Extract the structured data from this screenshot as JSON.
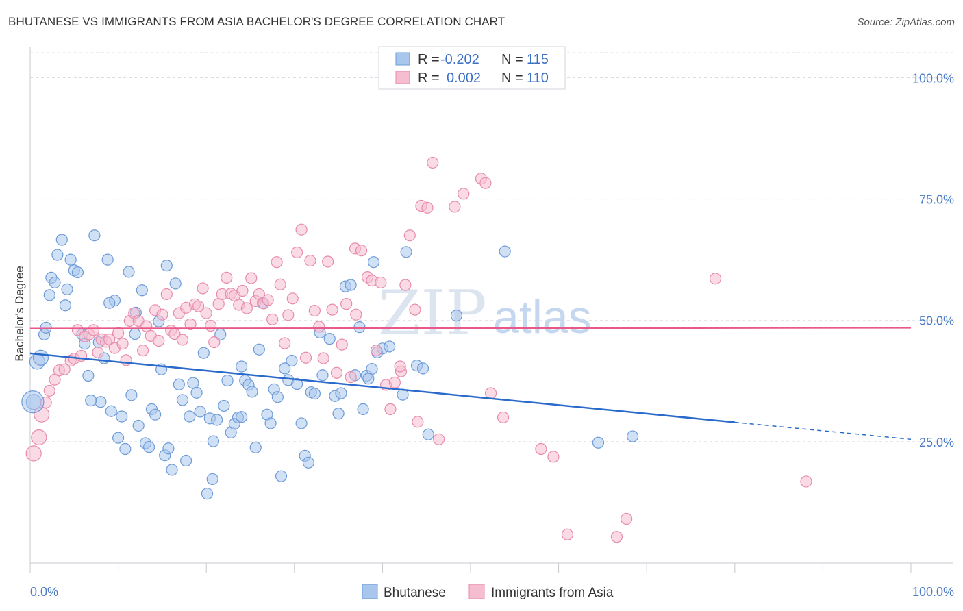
{
  "header": {
    "title": "BHUTANESE VS IMMIGRANTS FROM ASIA BACHELOR'S DEGREE CORRELATION CHART",
    "source": "Source: ZipAtlas.com"
  },
  "watermark": {
    "zip": "ZIP",
    "atlas": "atlas"
  },
  "colors": {
    "blue_fill": "#a9c6ec",
    "blue_stroke": "#6d9bd8",
    "blue_line": "#2a6acb",
    "pink_fill": "#f6bdd0",
    "pink_stroke": "#e88aab",
    "pink_line": "#e8598a",
    "grid": "#d8dde3",
    "tick_text": "#4a7cc7"
  },
  "chart_data": {
    "type": "scatter",
    "title": "BHUTANESE VS IMMIGRANTS FROM ASIA BACHELOR'S DEGREE CORRELATION CHART",
    "xlabel": "",
    "ylabel": "Bachelor's Degree",
    "xlim": [
      0,
      100
    ],
    "ylim": [
      0,
      105
    ],
    "x_tick_labels": [
      "0.0%",
      "100.0%"
    ],
    "y_tick_labels": [
      "25.0%",
      "50.0%",
      "75.0%",
      "100.0%"
    ],
    "y_ticks": [
      25,
      50,
      75,
      100
    ],
    "grid": true,
    "legend": [
      {
        "r_label": "R =",
        "r_value": "-0.202",
        "n_label": "N =",
        "n_value": "115"
      },
      {
        "r_label": "R =",
        "r_value": "0.002",
        "n_label": "N =",
        "n_value": "110"
      }
    ],
    "series": [
      {
        "name": "Bhutanese",
        "color": "blue",
        "trend": {
          "x0": 0,
          "y0": 43.2,
          "x1": 80,
          "y1": 29.0,
          "x_dash_end": 100,
          "y_dash_end": 25.5
        },
        "points": [
          [
            0.4,
            33.2
          ],
          [
            0.8,
            41.5
          ],
          [
            1.2,
            42.3
          ],
          [
            1.6,
            47.1
          ],
          [
            1.8,
            48.5
          ],
          [
            2.2,
            55.2
          ],
          [
            2.4,
            58.8
          ],
          [
            2.8,
            57.8
          ],
          [
            3.1,
            63.5
          ],
          [
            3.6,
            66.6
          ],
          [
            4.0,
            53.1
          ],
          [
            4.2,
            56.4
          ],
          [
            4.6,
            62.5
          ],
          [
            5.0,
            60.3
          ],
          [
            5.4,
            59.9
          ],
          [
            5.9,
            47.1
          ],
          [
            6.2,
            45.2
          ],
          [
            6.6,
            38.6
          ],
          [
            7.3,
            67.5
          ],
          [
            7.8,
            45.5
          ],
          [
            8.0,
            33.2
          ],
          [
            8.4,
            42.2
          ],
          [
            8.8,
            62.5
          ],
          [
            9.2,
            31.3
          ],
          [
            9.6,
            54.1
          ],
          [
            10.0,
            25.8
          ],
          [
            10.4,
            30.2
          ],
          [
            10.8,
            23.5
          ],
          [
            11.2,
            60.0
          ],
          [
            11.5,
            34.6
          ],
          [
            11.9,
            47.2
          ],
          [
            12.3,
            28.3
          ],
          [
            12.7,
            56.2
          ],
          [
            13.1,
            24.7
          ],
          [
            13.5,
            23.9
          ],
          [
            13.8,
            31.7
          ],
          [
            14.2,
            30.6
          ],
          [
            14.6,
            49.8
          ],
          [
            14.9,
            39.9
          ],
          [
            15.3,
            22.2
          ],
          [
            15.7,
            23.6
          ],
          [
            16.1,
            19.2
          ],
          [
            16.5,
            57.6
          ],
          [
            16.9,
            36.8
          ],
          [
            17.3,
            33.6
          ],
          [
            17.7,
            21.1
          ],
          [
            18.1,
            30.2
          ],
          [
            18.5,
            37.1
          ],
          [
            18.9,
            35.1
          ],
          [
            19.3,
            31.2
          ],
          [
            19.7,
            43.3
          ],
          [
            20.1,
            14.3
          ],
          [
            20.4,
            29.8
          ],
          [
            20.8,
            25.1
          ],
          [
            21.2,
            29.5
          ],
          [
            21.6,
            47.1
          ],
          [
            22.0,
            32.4
          ],
          [
            22.4,
            37.6
          ],
          [
            22.8,
            26.9
          ],
          [
            23.2,
            28.7
          ],
          [
            23.6,
            30.0
          ],
          [
            24.0,
            40.5
          ],
          [
            24.4,
            37.6
          ],
          [
            24.8,
            36.7
          ],
          [
            25.2,
            35.3
          ],
          [
            25.6,
            23.8
          ],
          [
            26.0,
            44.0
          ],
          [
            26.4,
            53.6
          ],
          [
            26.9,
            30.6
          ],
          [
            27.3,
            28.8
          ],
          [
            27.7,
            35.8
          ],
          [
            28.1,
            34.2
          ],
          [
            28.5,
            17.9
          ],
          [
            28.9,
            40.1
          ],
          [
            29.3,
            37.7
          ],
          [
            29.7,
            41.7
          ],
          [
            30.3,
            36.9
          ],
          [
            30.8,
            28.8
          ],
          [
            31.2,
            22.1
          ],
          [
            31.6,
            20.7
          ],
          [
            31.9,
            35.2
          ],
          [
            32.3,
            34.9
          ],
          [
            32.9,
            47.5
          ],
          [
            33.2,
            38.7
          ],
          [
            34.0,
            46.2
          ],
          [
            34.6,
            34.4
          ],
          [
            35.0,
            30.8
          ],
          [
            35.3,
            35.0
          ],
          [
            35.8,
            57.0
          ],
          [
            36.4,
            57.3
          ],
          [
            36.9,
            38.7
          ],
          [
            37.4,
            48.6
          ],
          [
            37.8,
            31.7
          ],
          [
            38.2,
            38.6
          ],
          [
            38.8,
            40.0
          ],
          [
            38.4,
            38.0
          ],
          [
            39.0,
            62.0
          ],
          [
            39.4,
            43.4
          ],
          [
            40.0,
            44.2
          ],
          [
            42.7,
            64.1
          ],
          [
            43.9,
            40.7
          ],
          [
            44.6,
            40.1
          ],
          [
            45.2,
            26.5
          ],
          [
            48.4,
            51.0
          ],
          [
            53.9,
            64.2
          ],
          [
            64.5,
            24.8
          ],
          [
            68.4,
            26.1
          ],
          [
            40.8,
            44.6
          ],
          [
            42.3,
            34.7
          ],
          [
            20.7,
            17.3
          ],
          [
            6.9,
            33.5
          ],
          [
            9.0,
            53.6
          ],
          [
            12.0,
            51.6
          ],
          [
            15.5,
            61.3
          ],
          [
            24.0,
            30.1
          ]
        ]
      },
      {
        "name": "Immigrants from Asia",
        "color": "pink",
        "trend": {
          "x0": 0,
          "y0": 48.3,
          "x1": 100,
          "y1": 48.5
        },
        "points": [
          [
            0.4,
            22.6
          ],
          [
            1.0,
            25.9
          ],
          [
            1.3,
            30.6
          ],
          [
            1.8,
            33.1
          ],
          [
            2.2,
            35.5
          ],
          [
            2.8,
            37.8
          ],
          [
            3.3,
            39.7
          ],
          [
            3.9,
            39.9
          ],
          [
            4.6,
            41.7
          ],
          [
            5.0,
            42.1
          ],
          [
            5.4,
            48.0
          ],
          [
            5.8,
            42.7
          ],
          [
            6.2,
            46.7
          ],
          [
            6.7,
            47.1
          ],
          [
            7.2,
            48.0
          ],
          [
            7.7,
            43.4
          ],
          [
            8.1,
            46.1
          ],
          [
            8.6,
            45.6
          ],
          [
            9.0,
            46.1
          ],
          [
            9.6,
            44.3
          ],
          [
            10.0,
            47.4
          ],
          [
            10.5,
            45.2
          ],
          [
            10.9,
            41.8
          ],
          [
            11.3,
            49.9
          ],
          [
            11.8,
            51.5
          ],
          [
            12.3,
            49.9
          ],
          [
            12.8,
            43.8
          ],
          [
            13.2,
            48.8
          ],
          [
            13.7,
            46.8
          ],
          [
            14.2,
            52.1
          ],
          [
            14.6,
            45.8
          ],
          [
            15.0,
            51.2
          ],
          [
            15.5,
            55.4
          ],
          [
            16.0,
            47.9
          ],
          [
            16.4,
            47.2
          ],
          [
            16.9,
            51.5
          ],
          [
            17.3,
            46.0
          ],
          [
            17.7,
            52.6
          ],
          [
            18.2,
            49.2
          ],
          [
            18.7,
            53.3
          ],
          [
            19.1,
            52.9
          ],
          [
            19.6,
            56.6
          ],
          [
            20.0,
            51.5
          ],
          [
            20.5,
            48.9
          ],
          [
            20.9,
            45.5
          ],
          [
            21.4,
            53.4
          ],
          [
            21.8,
            55.4
          ],
          [
            22.3,
            58.8
          ],
          [
            22.8,
            55.5
          ],
          [
            23.2,
            55.1
          ],
          [
            23.7,
            53.2
          ],
          [
            24.1,
            56.1
          ],
          [
            24.6,
            52.5
          ],
          [
            25.1,
            58.7
          ],
          [
            25.6,
            54.0
          ],
          [
            26.0,
            55.4
          ],
          [
            26.5,
            53.5
          ],
          [
            27.0,
            54.2
          ],
          [
            27.5,
            50.2
          ],
          [
            28.0,
            62.0
          ],
          [
            28.4,
            57.4
          ],
          [
            28.9,
            45.3
          ],
          [
            29.3,
            51.1
          ],
          [
            29.8,
            54.5
          ],
          [
            30.3,
            64.0
          ],
          [
            30.8,
            68.7
          ],
          [
            31.3,
            42.3
          ],
          [
            31.8,
            62.3
          ],
          [
            32.3,
            52.0
          ],
          [
            32.8,
            48.7
          ],
          [
            33.3,
            42.2
          ],
          [
            33.8,
            62.1
          ],
          [
            34.3,
            52.2
          ],
          [
            34.8,
            39.2
          ],
          [
            35.4,
            45.0
          ],
          [
            35.9,
            53.4
          ],
          [
            36.4,
            38.3
          ],
          [
            36.9,
            64.8
          ],
          [
            37.6,
            64.4
          ],
          [
            38.3,
            58.9
          ],
          [
            38.8,
            58.2
          ],
          [
            39.3,
            43.8
          ],
          [
            39.8,
            57.8
          ],
          [
            40.4,
            36.7
          ],
          [
            40.9,
            31.7
          ],
          [
            41.4,
            37.2
          ],
          [
            42.1,
            39.5
          ],
          [
            42.6,
            57.3
          ],
          [
            43.1,
            67.5
          ],
          [
            43.7,
            52.2
          ],
          [
            44.4,
            73.6
          ],
          [
            45.1,
            73.2
          ],
          [
            45.7,
            82.5
          ],
          [
            46.4,
            25.5
          ],
          [
            48.2,
            73.4
          ],
          [
            49.2,
            76.1
          ],
          [
            51.2,
            79.2
          ],
          [
            51.7,
            78.3
          ],
          [
            52.3,
            35.0
          ],
          [
            53.7,
            30.0
          ],
          [
            44.0,
            29.1
          ],
          [
            42.0,
            40.5
          ],
          [
            58.0,
            23.5
          ],
          [
            59.4,
            21.9
          ],
          [
            61.0,
            5.9
          ],
          [
            66.6,
            5.4
          ],
          [
            67.7,
            9.1
          ],
          [
            77.8,
            58.6
          ],
          [
            88.1,
            16.8
          ],
          [
            37.0,
            51.2
          ]
        ]
      }
    ]
  },
  "bottom_legend": [
    {
      "label": "Bhutanese"
    },
    {
      "label": "Immigrants from Asia"
    }
  ]
}
